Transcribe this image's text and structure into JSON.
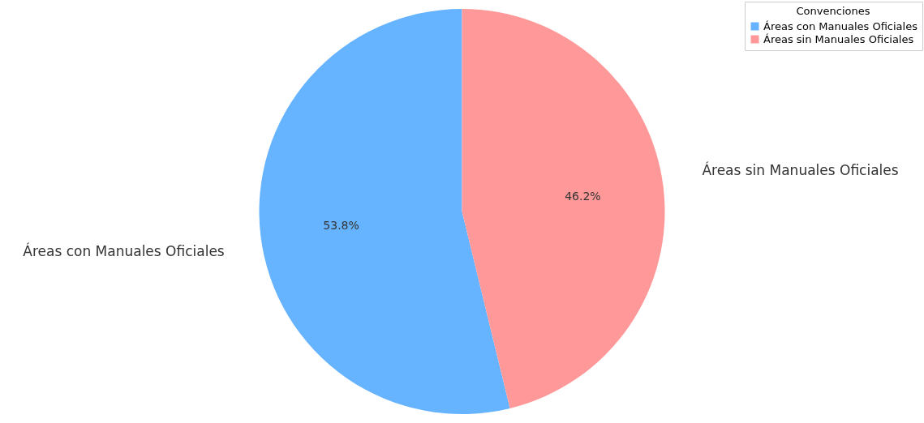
{
  "chart_data": {
    "type": "pie",
    "categories": [
      "Áreas con Manuales Oficiales",
      "Áreas sin Manuales Oficiales"
    ],
    "values": [
      53.8,
      46.2
    ],
    "colors": [
      "#66b3ff",
      "#ff9999"
    ],
    "value_labels": [
      "53.8%",
      "46.2%"
    ],
    "legend_title": "Convenciones",
    "legend": "top right"
  }
}
